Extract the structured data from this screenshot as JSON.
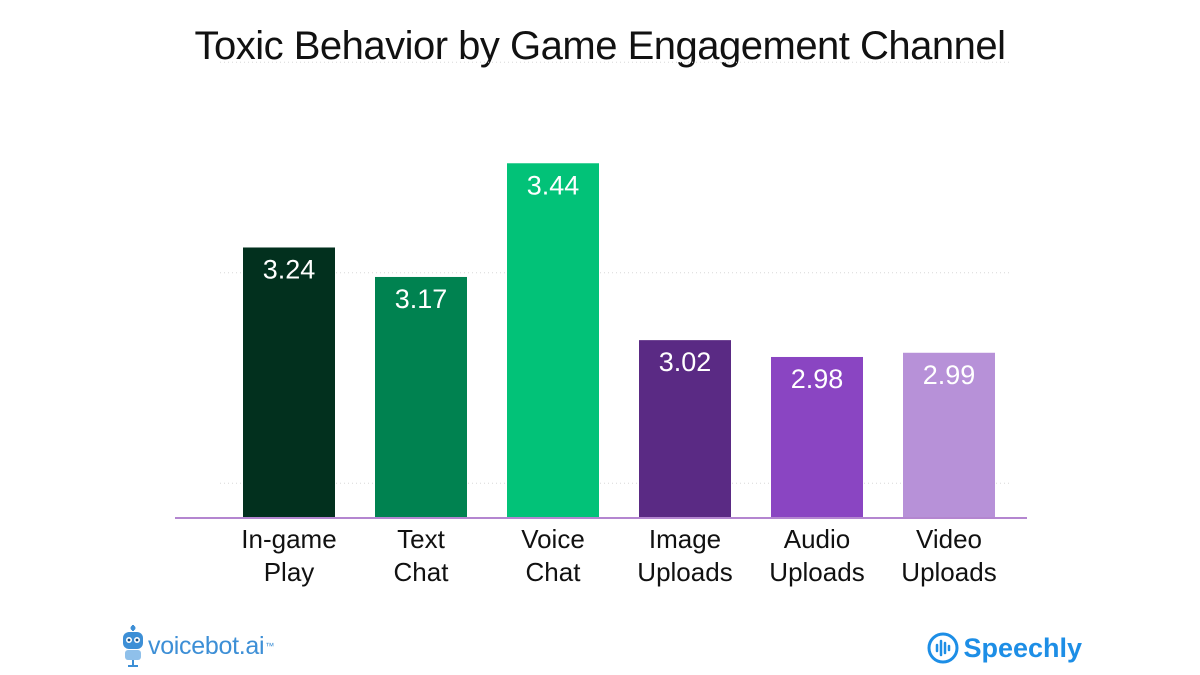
{
  "chart_data": {
    "type": "bar",
    "title": "Toxic Behavior by Game Engagement Channel",
    "categories": [
      [
        "In-game",
        "Play"
      ],
      [
        "Text",
        "Chat"
      ],
      [
        "Voice",
        "Chat"
      ],
      [
        "Image",
        "Uploads"
      ],
      [
        "Audio",
        "Uploads"
      ],
      [
        "Video",
        "Uploads"
      ]
    ],
    "values": [
      3.24,
      3.17,
      3.44,
      3.02,
      2.98,
      2.99
    ],
    "value_labels": [
      "3.24",
      "3.17",
      "3.44",
      "3.02",
      "2.98",
      "2.99"
    ],
    "colors": [
      "#02301e",
      "#008250",
      "#02c278",
      "#5a2a84",
      "#8a45c2",
      "#b791d8"
    ],
    "ylim": [
      2.6,
      3.5
    ],
    "gridlines": [
      2.68,
      3.18,
      3.68
    ],
    "grid": true,
    "legend": "none",
    "xlabel": "",
    "ylabel": ""
  },
  "branding": {
    "left_logo_text": "voicebot.ai",
    "left_logo_tm": "™",
    "right_logo_text": "Speechly"
  }
}
